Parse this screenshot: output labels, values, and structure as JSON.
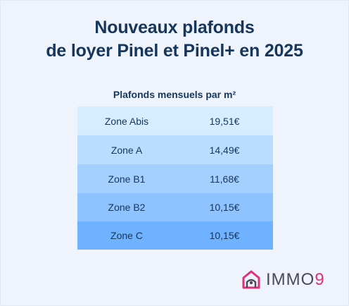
{
  "title": {
    "line1": "Nouveaux plafonds",
    "line2": "de loyer Pinel et Pinel+ en 2025"
  },
  "table": {
    "caption": "Plafonds mensuels par m²",
    "rows": [
      {
        "zone": "Zone Abis",
        "value": "19,51€"
      },
      {
        "zone": "Zone A",
        "value": "14,49€"
      },
      {
        "zone": "Zone B1",
        "value": "11,68€"
      },
      {
        "zone": "Zone B2",
        "value": "10,15€"
      },
      {
        "zone": "Zone C",
        "value": "10,15€"
      }
    ]
  },
  "logo": {
    "name": "IMMO",
    "digit": "9",
    "icon": "house-logo-icon"
  },
  "colors": {
    "background": "#eef3fc",
    "title": "#16365c",
    "row_shades": [
      "#d6ecff",
      "#b9dcff",
      "#a3d0ff",
      "#8fc3ff",
      "#6fb2ff"
    ],
    "logo_accent": "#e0317a"
  }
}
